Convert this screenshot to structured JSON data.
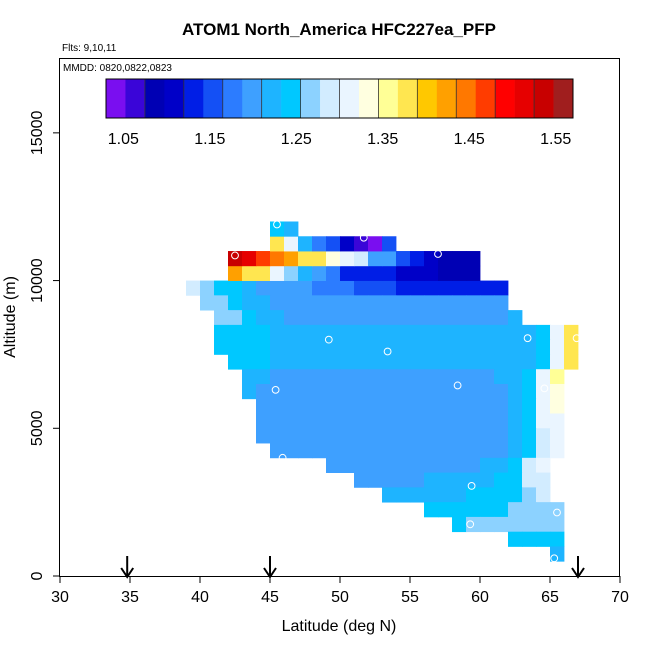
{
  "chart_data": {
    "type": "heatmap",
    "title": "ATOM1 North_America HFC227ea_PFP",
    "flights_label": "Flts: 9,10,11",
    "dates_label": "MMDD: 0820,0822,0823",
    "xlabel": "Latitude (deg N)",
    "ylabel": "Altitude (m)",
    "xlim": [
      30,
      70
    ],
    "ylim": [
      0,
      17500
    ],
    "x_ticks": [
      "30",
      "35",
      "40",
      "45",
      "50",
      "55",
      "60",
      "65",
      "70"
    ],
    "y_ticks": [
      "0",
      "5000",
      "10000",
      "15000"
    ],
    "colorbar": {
      "range": [
        1.03,
        1.57
      ],
      "tick_values": [
        1.05,
        1.15,
        1.25,
        1.35,
        1.45,
        1.55
      ],
      "tick_labels": [
        "1.05",
        "1.15",
        "1.25",
        "1.35",
        "1.45",
        "1.55"
      ],
      "colors": [
        "#7a0ef0",
        "#3a05d8",
        "#0000b4",
        "#0000c8",
        "#001ee6",
        "#1450f5",
        "#2c7cff",
        "#3ea0ff",
        "#1eb4ff",
        "#00c8ff",
        "#8cd2ff",
        "#d2ecff",
        "#eaf5ff",
        "#ffffe0",
        "#ffff96",
        "#ffe650",
        "#ffc800",
        "#ffa000",
        "#ff7800",
        "#ff3c00",
        "#ff0000",
        "#e60000",
        "#c80000",
        "#a01e1e"
      ]
    },
    "arrows_lat": [
      34.8,
      45.0,
      67.0
    ],
    "sample_points": [
      {
        "lat": 45.5,
        "alt": 11900
      },
      {
        "lat": 51.7,
        "alt": 11450
      },
      {
        "lat": 42.5,
        "alt": 10850
      },
      {
        "lat": 57.0,
        "alt": 10900
      },
      {
        "lat": 49.2,
        "alt": 8000
      },
      {
        "lat": 53.4,
        "alt": 7600
      },
      {
        "lat": 63.4,
        "alt": 8050
      },
      {
        "lat": 66.9,
        "alt": 8050
      },
      {
        "lat": 45.4,
        "alt": 6300
      },
      {
        "lat": 58.4,
        "alt": 6450
      },
      {
        "lat": 64.6,
        "alt": 6350
      },
      {
        "lat": 45.9,
        "alt": 4000
      },
      {
        "lat": 50.4,
        "alt": 3200
      },
      {
        "lat": 59.4,
        "alt": 3050
      },
      {
        "lat": 65.5,
        "alt": 2150
      },
      {
        "lat": 59.3,
        "alt": 1750
      },
      {
        "lat": 65.3,
        "alt": 600
      }
    ],
    "cell_size": {
      "lat": 1.0,
      "alt": 500
    },
    "cells": [
      {
        "lat0": 39,
        "alt0": 9500,
        "values": [
          1.28
        ]
      },
      {
        "lat0": 40,
        "alt0": 9500,
        "values": [
          1.26,
          1.25,
          1.24,
          1.22,
          1.21,
          1.2,
          1.2,
          1.19,
          1.18,
          1.17,
          1.17,
          1.16,
          1.15,
          1.15,
          1.14,
          1.14,
          1.14,
          1.14,
          1.14,
          1.13,
          1.13,
          1.13
        ]
      },
      {
        "lat0": 42,
        "alt0": 10000,
        "values": [
          1.42,
          1.39,
          1.37,
          1.3,
          1.27,
          1.23,
          1.21,
          1.17,
          1.14,
          1.13,
          1.12,
          1.12,
          1.11,
          1.1,
          1.1,
          1.08,
          1.08,
          1.08
        ]
      },
      {
        "lat0": 42,
        "alt0": 10500,
        "values": [
          1.53,
          1.51,
          1.47,
          1.45,
          1.42,
          1.39,
          1.37,
          1.34,
          1.3,
          1.28,
          1.2,
          1.19,
          1.15,
          1.13,
          1.11,
          1.09,
          1.08,
          1.08
        ]
      },
      {
        "lat0": 45,
        "alt0": 11000,
        "values": [
          1.38,
          1.3,
          1.22,
          1.18,
          1.16,
          1.1,
          1.06,
          1.03,
          1.15
        ]
      },
      {
        "lat0": 45,
        "alt0": 11500,
        "values": [
          1.24,
          1.22
        ]
      },
      {
        "lat0": 40,
        "alt0": 9000,
        "values": [
          1.27,
          1.26,
          1.25,
          1.23,
          1.22,
          1.21,
          1.2,
          1.2,
          1.2,
          1.2,
          1.2,
          1.2,
          1.2,
          1.2,
          1.2,
          1.2,
          1.2,
          1.2,
          1.2,
          1.2,
          1.2,
          1.2
        ]
      },
      {
        "lat0": 41,
        "alt0": 8500,
        "values": [
          1.27,
          1.26,
          1.25,
          1.23,
          1.22,
          1.21,
          1.2,
          1.2,
          1.2,
          1.2,
          1.2,
          1.2,
          1.2,
          1.2,
          1.2,
          1.2,
          1.2,
          1.2,
          1.2,
          1.2,
          1.2,
          1.23
        ]
      },
      {
        "lat0": 41,
        "alt0": 8000,
        "values": [
          1.25,
          1.25,
          1.24,
          1.24,
          1.23,
          1.23,
          1.23,
          1.23,
          1.23,
          1.23,
          1.23,
          1.23,
          1.23,
          1.23,
          1.23,
          1.23,
          1.23,
          1.23,
          1.23,
          1.23,
          1.23,
          1.23,
          1.23,
          1.24,
          1.32,
          1.37
        ]
      },
      {
        "lat0": 41,
        "alt0": 7500,
        "values": [
          1.24,
          1.24,
          1.24,
          1.24,
          1.23,
          1.23,
          1.23,
          1.23,
          1.23,
          1.23,
          1.23,
          1.23,
          1.23,
          1.23,
          1.23,
          1.23,
          1.23,
          1.23,
          1.23,
          1.23,
          1.23,
          1.23,
          1.23,
          1.24,
          1.32,
          1.37
        ]
      },
      {
        "lat0": 42,
        "alt0": 7000,
        "values": [
          1.24,
          1.24,
          1.24,
          1.23,
          1.23,
          1.23,
          1.23,
          1.23,
          1.23,
          1.23,
          1.23,
          1.23,
          1.23,
          1.23,
          1.23,
          1.23,
          1.23,
          1.23,
          1.23,
          1.23,
          1.23,
          1.23,
          1.24,
          1.32,
          1.37
        ]
      },
      {
        "lat0": 43,
        "alt0": 6500,
        "values": [
          1.23,
          1.22,
          1.21,
          1.21,
          1.21,
          1.21,
          1.21,
          1.21,
          1.21,
          1.21,
          1.21,
          1.21,
          1.21,
          1.21,
          1.21,
          1.21,
          1.21,
          1.21,
          1.22,
          1.23,
          1.24,
          1.32,
          1.35
        ]
      },
      {
        "lat0": 43,
        "alt0": 6000,
        "values": [
          1.23,
          1.21,
          1.21,
          1.2,
          1.2,
          1.2,
          1.2,
          1.2,
          1.2,
          1.2,
          1.2,
          1.2,
          1.2,
          1.2,
          1.2,
          1.2,
          1.2,
          1.2,
          1.21,
          1.23,
          1.24,
          1.32,
          1.34
        ]
      },
      {
        "lat0": 44,
        "alt0": 5500,
        "values": [
          1.21,
          1.2,
          1.2,
          1.19,
          1.19,
          1.19,
          1.19,
          1.19,
          1.19,
          1.19,
          1.19,
          1.19,
          1.19,
          1.19,
          1.19,
          1.2,
          1.2,
          1.21,
          1.22,
          1.24,
          1.3,
          1.33
        ]
      },
      {
        "lat0": 44,
        "alt0": 5000,
        "values": [
          1.21,
          1.2,
          1.19,
          1.19,
          1.19,
          1.19,
          1.19,
          1.19,
          1.19,
          1.19,
          1.19,
          1.19,
          1.19,
          1.19,
          1.2,
          1.2,
          1.2,
          1.21,
          1.22,
          1.24,
          1.3,
          1.32
        ]
      },
      {
        "lat0": 44,
        "alt0": 4500,
        "values": [
          1.21,
          1.19,
          1.19,
          1.19,
          1.19,
          1.19,
          1.19,
          1.19,
          1.19,
          1.19,
          1.19,
          1.19,
          1.19,
          1.2,
          1.2,
          1.2,
          1.2,
          1.21,
          1.22,
          1.24,
          1.29,
          1.31
        ]
      },
      {
        "lat0": 45,
        "alt0": 4000,
        "values": [
          1.19,
          1.19,
          1.19,
          1.19,
          1.19,
          1.19,
          1.19,
          1.19,
          1.19,
          1.19,
          1.19,
          1.2,
          1.2,
          1.2,
          1.2,
          1.21,
          1.21,
          1.22,
          1.24,
          1.29,
          1.31
        ]
      },
      {
        "lat0": 49,
        "alt0": 3500,
        "values": [
          1.2,
          1.2,
          1.2,
          1.2,
          1.2,
          1.2,
          1.2,
          1.2,
          1.21,
          1.21,
          1.21,
          1.22,
          1.23,
          1.24,
          1.28,
          1.3
        ]
      },
      {
        "lat0": 51,
        "alt0": 3000,
        "values": [
          1.21,
          1.21,
          1.21,
          1.21,
          1.21,
          1.22,
          1.22,
          1.22,
          1.23,
          1.23,
          1.24,
          1.25,
          1.28,
          1.29
        ]
      },
      {
        "lat0": 53,
        "alt0": 2500,
        "values": [
          1.22,
          1.22,
          1.23,
          1.23,
          1.23,
          1.23,
          1.24,
          1.24,
          1.24,
          1.25,
          1.27,
          1.28
        ]
      },
      {
        "lat0": 56,
        "alt0": 2000,
        "values": [
          1.24,
          1.24,
          1.24,
          1.24,
          1.25,
          1.25,
          1.26,
          1.26,
          1.27,
          1.27
        ]
      },
      {
        "lat0": 58,
        "alt0": 1500,
        "values": [
          1.25,
          1.26,
          1.26,
          1.26,
          1.26,
          1.27,
          1.27,
          1.27
        ]
      },
      {
        "lat0": 62,
        "alt0": 1000,
        "values": [
          1.24,
          1.25,
          1.25,
          1.25
        ]
      },
      {
        "lat0": 65,
        "alt0": 500,
        "values": [
          1.22
        ]
      }
    ]
  }
}
